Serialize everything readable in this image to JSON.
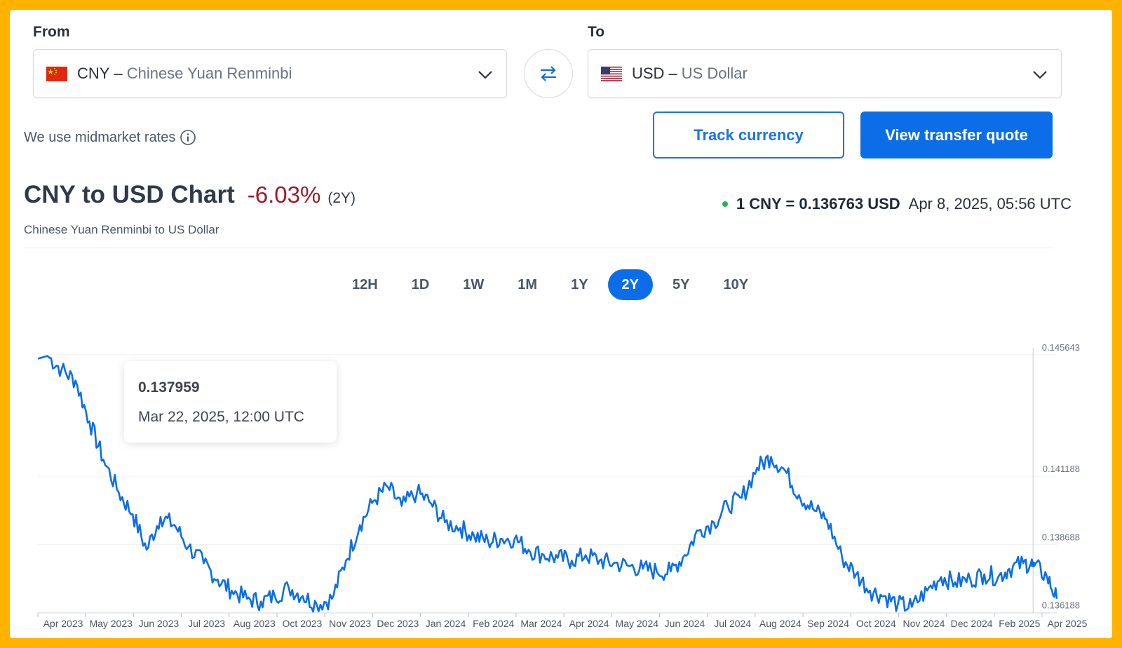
{
  "from": {
    "label": "From",
    "code": "CNY",
    "dash": "–",
    "name": "Chinese Yuan Renminbi"
  },
  "to": {
    "label": "To",
    "code": "USD",
    "dash": "–",
    "name": "US Dollar"
  },
  "midmarket_text": "We use midmarket rates",
  "buttons": {
    "track": "Track currency",
    "quote": "View transfer quote"
  },
  "header": {
    "title": "CNY to USD Chart",
    "change": "-6.03%",
    "period": "(2Y)",
    "subtitle": "Chinese Yuan Renminbi to US Dollar",
    "rate": "1 CNY = 0.136763 USD",
    "timestamp": "Apr 8, 2025, 05:56 UTC"
  },
  "ranges": [
    "12H",
    "1D",
    "1W",
    "1M",
    "1Y",
    "2Y",
    "5Y",
    "10Y"
  ],
  "active_range": "2Y",
  "tooltip": {
    "value": "0.137959",
    "date": "Mar 22, 2025, 12:00 UTC"
  },
  "colors": {
    "line": "#0b6ee8",
    "accent": "#0b6ee8",
    "negative": "#9b1c2c",
    "live": "#2bb24c",
    "frame": "#ffb300"
  },
  "chart_data": {
    "type": "line",
    "title": "CNY to USD Chart",
    "y_tick_labels": [
      "0.145643",
      "0.141188",
      "0.138688",
      "0.136188"
    ],
    "ylim": [
      0.13618,
      0.14564
    ],
    "x_tick_labels": [
      "Apr 2023",
      "May 2023",
      "Jun 2023",
      "Jul 2023",
      "Aug 2023",
      "Oct 2023",
      "Nov 2023",
      "Dec 2023",
      "Jan 2024",
      "Feb 2024",
      "Mar 2024",
      "Apr 2024",
      "May 2024",
      "Jun 2024",
      "Jul 2024",
      "Aug 2024",
      "Sep 2024",
      "Oct 2024",
      "Nov 2024",
      "Dec 2024",
      "Feb 2025",
      "Apr 2025"
    ],
    "x_range": [
      "2023-04-08",
      "2025-04-08"
    ],
    "grid": true,
    "series": [
      {
        "x": [
          "2023-04-08",
          "2023-04-15",
          "2023-04-25",
          "2023-05-05",
          "2023-05-15",
          "2023-05-25",
          "2023-06-05",
          "2023-06-15",
          "2023-06-25",
          "2023-07-05",
          "2023-07-15",
          "2023-07-25",
          "2023-08-05",
          "2023-08-15",
          "2023-08-25",
          "2023-09-05",
          "2023-09-15",
          "2023-09-25",
          "2023-10-05",
          "2023-10-15",
          "2023-10-25",
          "2023-11-05",
          "2023-11-15",
          "2023-11-25",
          "2023-12-05",
          "2023-12-15",
          "2023-12-25",
          "2024-01-05",
          "2024-01-15",
          "2024-01-25",
          "2024-02-05",
          "2024-02-15",
          "2024-02-25",
          "2024-03-05",
          "2024-03-15",
          "2024-03-25",
          "2024-04-05",
          "2024-04-15",
          "2024-04-25",
          "2024-05-05",
          "2024-05-15",
          "2024-05-25",
          "2024-06-05",
          "2024-06-15",
          "2024-06-25",
          "2024-07-05",
          "2024-07-15",
          "2024-07-25",
          "2024-08-05",
          "2024-08-15",
          "2024-08-25",
          "2024-09-05",
          "2024-09-15",
          "2024-09-25",
          "2024-10-05",
          "2024-10-15",
          "2024-10-25",
          "2024-11-05",
          "2024-11-15",
          "2024-11-25",
          "2024-12-05",
          "2024-12-15",
          "2024-12-25",
          "2025-01-05",
          "2025-01-15",
          "2025-01-25",
          "2025-02-05",
          "2025-02-15",
          "2025-02-25",
          "2025-03-05",
          "2025-03-15",
          "2025-03-22",
          "2025-04-01",
          "2025-04-08"
        ],
        "y": [
          0.1455,
          0.1456,
          0.1451,
          0.1447,
          0.1432,
          0.1418,
          0.1406,
          0.1398,
          0.1385,
          0.1397,
          0.1394,
          0.1386,
          0.138,
          0.1374,
          0.137,
          0.1367,
          0.1366,
          0.1368,
          0.1371,
          0.1368,
          0.1365,
          0.1367,
          0.1381,
          0.1394,
          0.1403,
          0.1408,
          0.1401,
          0.1406,
          0.1402,
          0.1395,
          0.1393,
          0.139,
          0.1388,
          0.1389,
          0.1389,
          0.1385,
          0.1383,
          0.1382,
          0.1381,
          0.1383,
          0.1381,
          0.138,
          0.1379,
          0.1378,
          0.1377,
          0.1377,
          0.1383,
          0.1392,
          0.1395,
          0.1401,
          0.1404,
          0.1415,
          0.1419,
          0.1414,
          0.1405,
          0.14,
          0.1396,
          0.1382,
          0.1376,
          0.137,
          0.1368,
          0.1365,
          0.1364,
          0.137,
          0.1375,
          0.1373,
          0.1374,
          0.1376,
          0.1375,
          0.1378,
          0.138,
          0.13796,
          0.1375,
          0.1367
        ]
      }
    ]
  }
}
